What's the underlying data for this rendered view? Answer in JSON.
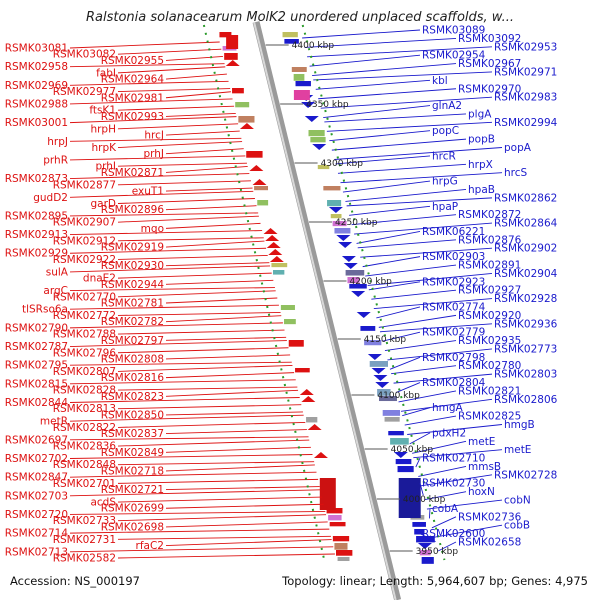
{
  "title": "Ralstonia solanacearum MolK2 unordered unplaced scaffolds, w...",
  "footer": {
    "accession": "Accession: NS_000197",
    "summary": "Topology: linear; Length: 5,964,607 bp; Genes: 4,975"
  },
  "colors": {
    "left_strand": "#dd1111",
    "right_strand": "#1a1acc",
    "backbone": "#999999"
  },
  "kbp_marks": [
    {
      "label": "4400 kbp"
    },
    {
      "label": "4350 kbp"
    },
    {
      "label": "4300 kbp"
    },
    {
      "label": "4250 kbp"
    },
    {
      "label": "4200 kbp"
    },
    {
      "label": "4150 kbp"
    },
    {
      "label": "4100 kbp"
    },
    {
      "label": "4050 kbp"
    },
    {
      "label": "4000 kbp"
    },
    {
      "label": "3950 kbp"
    }
  ],
  "left_genes": [
    "RSMK03081",
    "RSMK03082",
    "RSMK02955",
    "RSMK02958",
    "fabI",
    "RSMK02964",
    "RSMK02969",
    "RSMK02977",
    "RSMK02981",
    "RSMK02988",
    "ftsK1",
    "RSMK02993",
    "RSMK03001",
    "hrpH",
    "hrcJ",
    "hrpJ",
    "hrpK",
    "prhJ",
    "prhR",
    "prhI",
    "RSMK02871",
    "RSMK02873",
    "RSMK02877",
    "exuT1",
    "gudD2",
    "garD",
    "RSMK02896",
    "RSMK02895",
    "RSMK02907",
    "mqo",
    "RSMK02913",
    "RSMK02912",
    "RSMK02919",
    "RSMK02929",
    "RSMK02922",
    "RSMK02930",
    "sulA",
    "dnaE2",
    "RSMK02944",
    "argC",
    "RSMK02770",
    "RSMK02781",
    "tlSRso6a",
    "RSMK02772",
    "RSMK02782",
    "RSMK02790",
    "RSMK02788",
    "RSMK02797",
    "RSMK02787",
    "RSMK02796",
    "RSMK02808",
    "RSMK02795",
    "RSMK02807",
    "RSMK02816",
    "RSMK02815",
    "RSMK02828",
    "RSMK02823",
    "RSMK02844",
    "RSMK02813",
    "RSMK02850",
    "metR",
    "RSMK02822",
    "RSMK02837",
    "RSMK02697",
    "RSMK02836",
    "RSMK02849",
    "RSMK02702",
    "RSMK02848",
    "RSMK02718",
    "RSMK02847",
    "RSMK02701",
    "RSMK02721",
    "RSMK02703",
    "acdS",
    "RSMK02699",
    "RSMK02720",
    "RSMK02733",
    "RSMK02698",
    "RSMK02714",
    "RSMK02731",
    "rfaC2",
    "RSMK02713",
    "RSMK02582"
  ],
  "right_genes": [
    "RSMK03089",
    "RSMK03092",
    "RSMK02953",
    "RSMK02954",
    "RSMK02967",
    "RSMK02971",
    "kbl",
    "RSMK02970",
    "RSMK02983",
    "glnA2",
    "plgA",
    "RSMK02994",
    "popC",
    "popB",
    "popA",
    "hrcR",
    "hrpX",
    "hrcS",
    "hrpG",
    "hpaB",
    "RSMK02862",
    "hpaP",
    "RSMK02872",
    "RSMK02864",
    "RSMK06221",
    "RSMK02876",
    "RSMK02902",
    "RSMK02903",
    "RSMK02891",
    "RSMK02904",
    "RSMK02923",
    "RSMK02927",
    "RSMK02928",
    "RSMK02774",
    "RSMK02920",
    "RSMK02936",
    "RSMK02779",
    "RSMK02935",
    "RSMK02773",
    "RSMK02798",
    "RSMK02780",
    "RSMK02803",
    "RSMK02804",
    "RSMK02821",
    "RSMK02806",
    "hmgA",
    "RSMK02825",
    "hmgB",
    "pdxH2",
    "metE",
    "metE",
    "RSMK02710",
    "mmsB",
    "RSMK02728",
    "RSMK02730",
    "hoxN",
    "cobN",
    "cobA",
    "RSMK02736",
    "cobB",
    "RSMK02600",
    "RSMK02658"
  ]
}
